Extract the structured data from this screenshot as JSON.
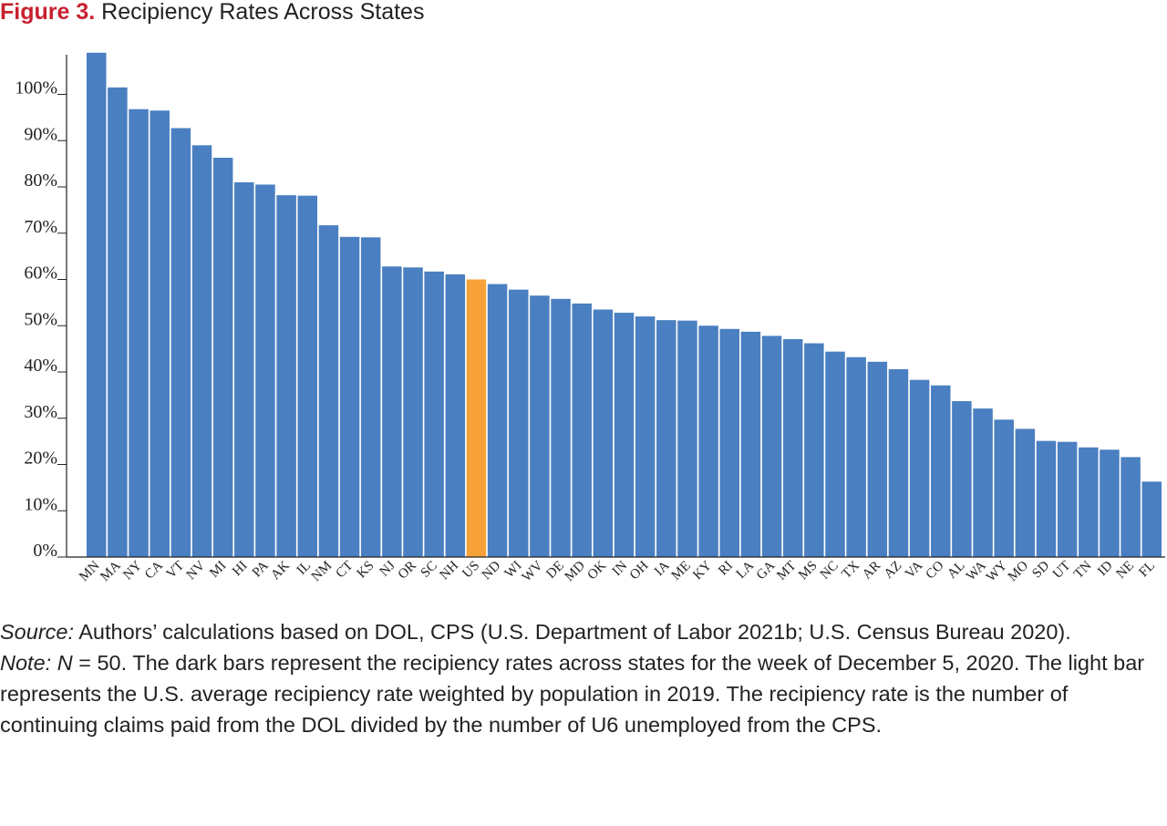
{
  "figure": {
    "label": "Figure 3.",
    "title": "Recipiency Rates Across States"
  },
  "colors": {
    "bar": "#4a7fc1",
    "highlight": "#f6a238",
    "title_label": "#c8202f",
    "axis": "#222222"
  },
  "chart_data": {
    "type": "bar",
    "categories": [
      "MN",
      "MA",
      "NY",
      "CA",
      "VT",
      "NV",
      "MI",
      "HI",
      "PA",
      "AK",
      "IL",
      "NM",
      "CT",
      "KS",
      "NJ",
      "OR",
      "SC",
      "NH",
      "US",
      "ND",
      "WI",
      "WV",
      "DE",
      "MD",
      "OK",
      "IN",
      "OH",
      "IA",
      "ME",
      "KY",
      "RI",
      "LA",
      "GA",
      "MT",
      "MS",
      "NC",
      "TX",
      "AR",
      "AZ",
      "VA",
      "CO",
      "AL",
      "WA",
      "WY",
      "MO",
      "SD",
      "UT",
      "TN",
      "ID",
      "NE",
      "FL"
    ],
    "values": [
      109,
      101.5,
      96.8,
      96.5,
      92.7,
      89,
      86.3,
      81,
      80.5,
      78.2,
      78.1,
      71.7,
      69.2,
      69.1,
      62.8,
      62.6,
      61.7,
      61.1,
      60,
      59,
      57.8,
      56.5,
      55.8,
      54.8,
      53.5,
      52.8,
      52,
      51.2,
      51.1,
      50,
      49.3,
      48.7,
      47.8,
      47.1,
      46.2,
      44.4,
      43.2,
      42.2,
      40.6,
      38.3,
      37.1,
      33.7,
      32.1,
      29.7,
      27.7,
      25.1,
      24.9,
      23.7,
      23.2,
      21.6,
      16.3
    ],
    "highlight_category": "US",
    "y_ticks": [
      "0%",
      "10%",
      "20%",
      "30%",
      "40%",
      "50%",
      "60%",
      "70%",
      "80%",
      "90%",
      "100%"
    ],
    "y_tick_values": [
      0,
      10,
      20,
      30,
      40,
      50,
      60,
      70,
      80,
      90,
      100
    ],
    "ylim": [
      0,
      109
    ],
    "title": "Recipiency Rates Across States",
    "xlabel": "",
    "ylabel": "",
    "grid": false,
    "legend": "none"
  },
  "source": {
    "label": "Source:",
    "text": " Authors’ calculations based on DOL, CPS (U.S. Department of Labor 2021b; U.S. Census Bureau 2020)."
  },
  "note": {
    "label": "Note:",
    "n_var": "N",
    "text": " = 50. The dark bars represent the recipiency rates across states for the week of December 5, 2020. The light bar represents the U.S. average recipiency rate weighted by population in 2019. The recipiency rate is the number of continuing claims paid from the DOL divided by the number of U6 unemployed from the CPS."
  }
}
